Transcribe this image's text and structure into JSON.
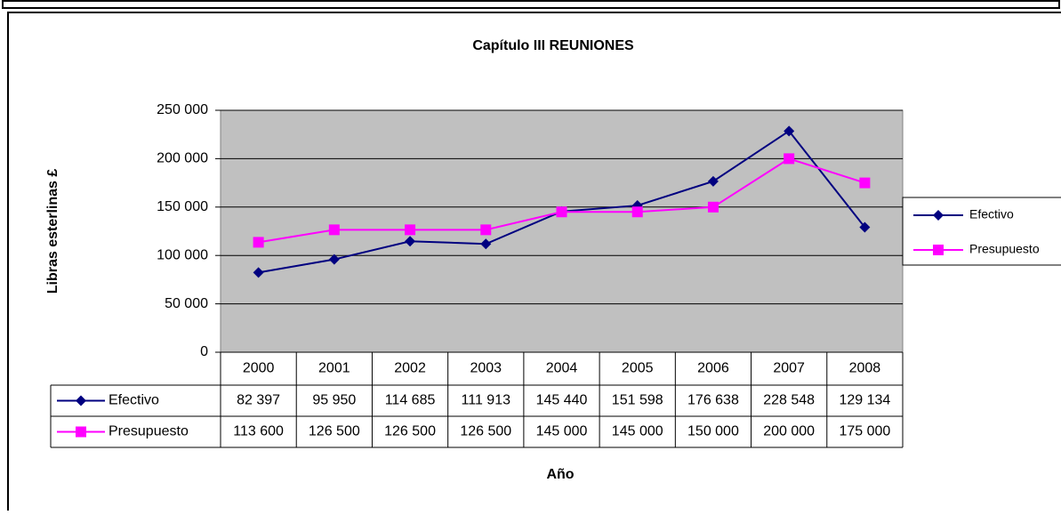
{
  "chart_data": {
    "type": "line",
    "title": "Capítulo III REUNIONES",
    "x_label": "Año",
    "y_label": "Libras esterlinas £",
    "categories": [
      "2000",
      "2001",
      "2002",
      "2003",
      "2004",
      "2005",
      "2006",
      "2007",
      "2008"
    ],
    "series": [
      {
        "name": "Efectivo",
        "color": "#000080",
        "marker": "diamond",
        "values": [
          82397,
          95950,
          114685,
          111913,
          145440,
          151598,
          176638,
          228548,
          129134
        ],
        "value_labels": [
          "82 397",
          "95 950",
          "114 685",
          "111 913",
          "145 440",
          "151 598",
          "176 638",
          "228 548",
          "129 134"
        ]
      },
      {
        "name": "Presupuesto",
        "color": "#ff00ff",
        "marker": "square",
        "values": [
          113600,
          126500,
          126500,
          126500,
          145000,
          145000,
          150000,
          200000,
          175000
        ],
        "value_labels": [
          "113 600",
          "126 500",
          "126 500",
          "126 500",
          "145 000",
          "145 000",
          "150 000",
          "200 000",
          "175 000"
        ]
      }
    ],
    "ylim": [
      0,
      250000
    ],
    "yticks": [
      0,
      {
        "value": 50000,
        "label": "50 000"
      },
      {
        "value": 100000,
        "label": "100 000"
      },
      {
        "value": 150000,
        "label": "150 000"
      },
      {
        "value": 200000,
        "label": "200 000"
      },
      {
        "value": 250000,
        "label": "250 000"
      }
    ],
    "grid": true,
    "legend": "right",
    "plot_background": "#c0c0c0"
  }
}
